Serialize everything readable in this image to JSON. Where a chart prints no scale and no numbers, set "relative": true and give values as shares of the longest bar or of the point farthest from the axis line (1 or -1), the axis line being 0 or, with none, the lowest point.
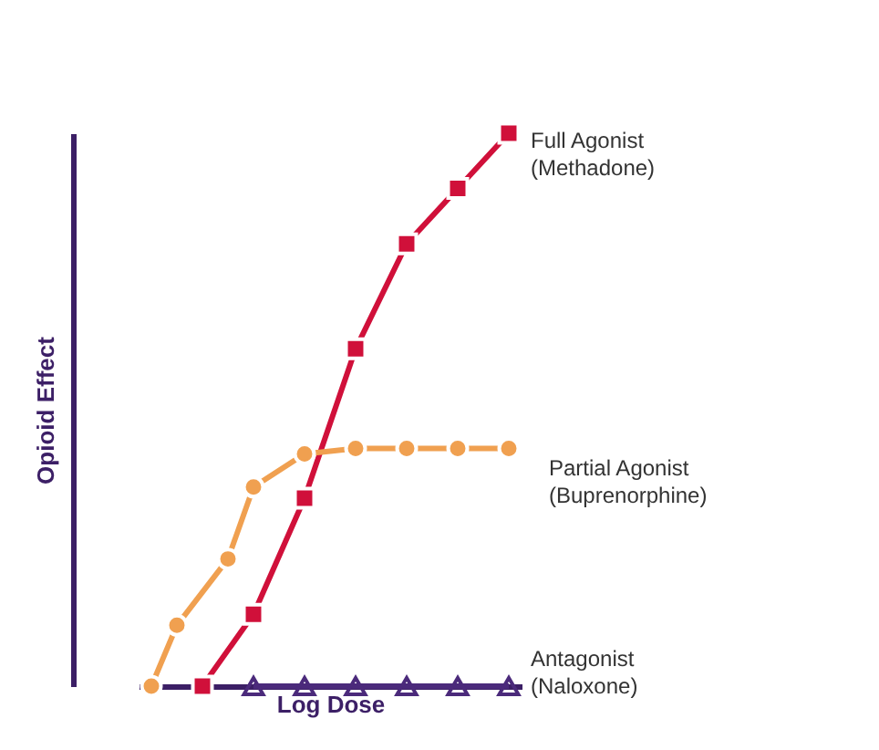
{
  "chart_data": {
    "type": "line",
    "relative": true,
    "xlabel": "Log Dose",
    "ylabel": "Opioid Effect",
    "categories": [
      null,
      null,
      null,
      null,
      null,
      null,
      null,
      null,
      null,
      null,
      null,
      null,
      null,
      null,
      null
    ],
    "series": [
      {
        "name": "Full Agonist\n(Methadone)",
        "color": "#d0103a",
        "marker": "square",
        "values": [
          null,
          null,
          0,
          null,
          0.13,
          null,
          0.34,
          null,
          0.61,
          null,
          0.8,
          null,
          0.9,
          null,
          1.0
        ]
      },
      {
        "name": "Partial Agonist\n(Buprenorphine)",
        "color": "#f0a050",
        "marker": "circle",
        "values": [
          0,
          0.11,
          null,
          0.23,
          0.36,
          null,
          0.42,
          null,
          0.43,
          null,
          0.43,
          null,
          0.43,
          null,
          0.43
        ]
      },
      {
        "name": "Antagonist\n(Naloxone)",
        "color": "#4b2a7b",
        "marker": "triangle",
        "values": [
          null,
          null,
          null,
          null,
          0,
          null,
          0,
          null,
          0,
          null,
          0,
          null,
          0,
          null,
          0
        ]
      }
    ],
    "grid": false
  }
}
